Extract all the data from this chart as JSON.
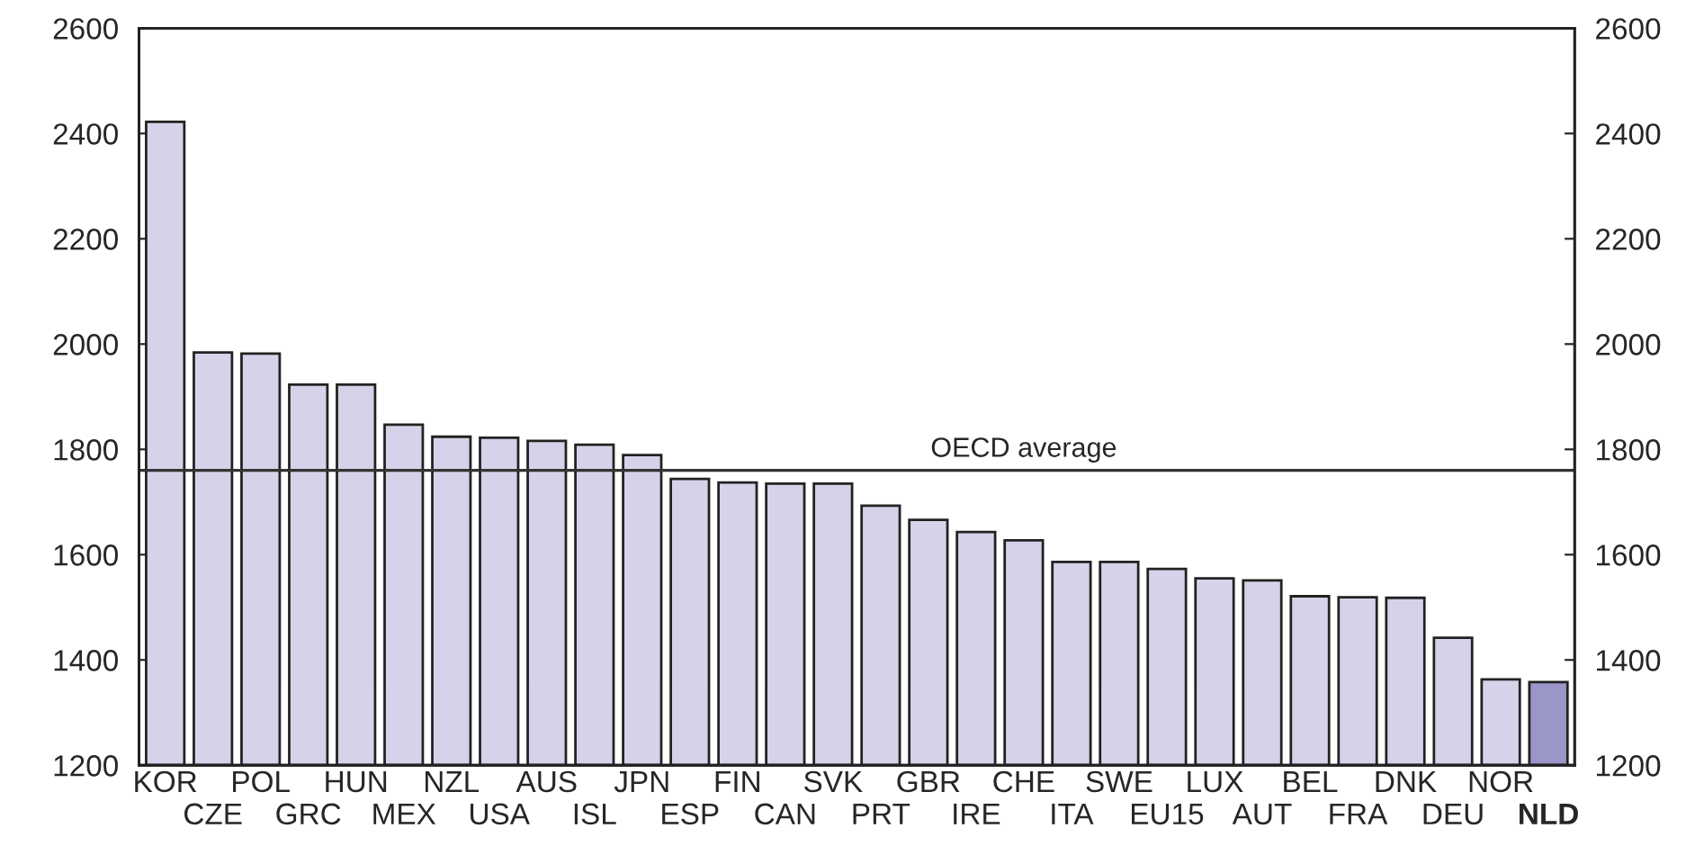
{
  "chart_data": {
    "type": "bar",
    "categories": [
      "KOR",
      "CZE",
      "POL",
      "GRC",
      "HUN",
      "MEX",
      "NZL",
      "USA",
      "AUS",
      "ISL",
      "JPN",
      "ESP",
      "FIN",
      "CAN",
      "SVK",
      "PRT",
      "GBR",
      "IRE",
      "CHE",
      "ITA",
      "SWE",
      "EU15",
      "LUX",
      "AUT",
      "BEL",
      "FRA",
      "DNK",
      "DEU",
      "NOR",
      "NLD"
    ],
    "values": [
      2422,
      1984,
      1982,
      1923,
      1923,
      1847,
      1824,
      1822,
      1816,
      1809,
      1789,
      1744,
      1737,
      1735,
      1735,
      1693,
      1666,
      1643,
      1627,
      1586,
      1586,
      1573,
      1555,
      1551,
      1521,
      1519,
      1518,
      1442,
      1363,
      1358
    ],
    "colors": [
      "#d5d3e9",
      "#d5d3e9",
      "#d5d3e9",
      "#d5d3e9",
      "#d5d3e9",
      "#d5d3e9",
      "#d5d3e9",
      "#d5d3e9",
      "#d5d3e9",
      "#d5d3e9",
      "#d5d3e9",
      "#d5d3e9",
      "#d5d3e9",
      "#d5d3e9",
      "#d5d3e9",
      "#d5d3e9",
      "#d5d3e9",
      "#d5d3e9",
      "#d5d3e9",
      "#d5d3e9",
      "#d5d3e9",
      "#d5d3e9",
      "#d5d3e9",
      "#d5d3e9",
      "#d5d3e9",
      "#d5d3e9",
      "#d5d3e9",
      "#d5d3e9",
      "#d5d3e9",
      "#9a96c8"
    ],
    "ylim": [
      1200,
      2600
    ],
    "yticks": [
      1200,
      1400,
      1600,
      1800,
      2000,
      2200,
      2400,
      2600
    ],
    "y2lim": [
      1200,
      2600
    ],
    "y2ticks": [
      1200,
      1400,
      1600,
      1800,
      2000,
      2200,
      2400,
      2600
    ],
    "ref_lines": [
      {
        "axis": "y",
        "value": 1760,
        "label": "OECD average",
        "color": "#333333"
      }
    ],
    "grid": false,
    "legend": false
  }
}
